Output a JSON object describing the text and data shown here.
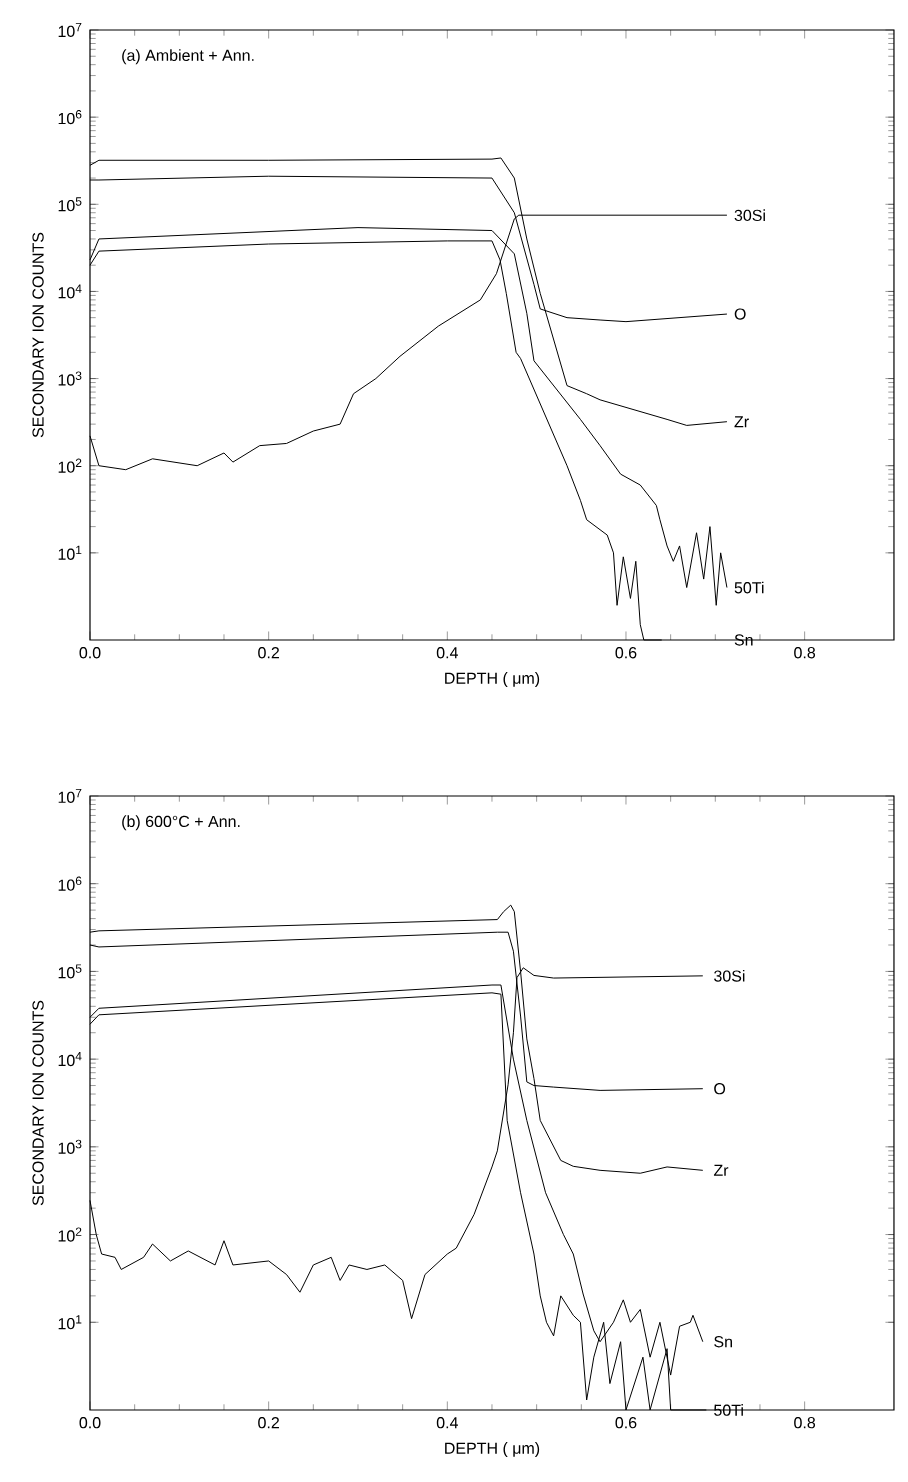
{
  "chart_data": [
    {
      "type": "line",
      "title": "(a) Ambient + Ann.",
      "xlabel": "DEPTH ( μm)",
      "ylabel": "SECONDARY ION COUNTS",
      "log": "y",
      "xlim": [
        0,
        0.9
      ],
      "ylim": [
        1,
        10000000
      ],
      "xticks": [
        {
          "value": 0,
          "label": "0.0"
        },
        {
          "value": 0.2,
          "label": "0.2"
        },
        {
          "value": 0.4,
          "label": "0.4"
        },
        {
          "value": 0.6,
          "label": "0.6"
        },
        {
          "value": 0.8,
          "label": "0.8"
        }
      ],
      "yticks": [
        {
          "value": 10,
          "label": "10$^{1}$"
        },
        {
          "value": 100,
          "label": "10$^{2}$"
        },
        {
          "value": 1000,
          "label": "10$^{3}$"
        },
        {
          "value": 10000,
          "label": "10$^{4}$"
        },
        {
          "value": 100000,
          "label": "10$^{5}$"
        },
        {
          "value": 1000000,
          "label": "10$^{6}$"
        },
        {
          "value": 10000000,
          "label": "10$^{7}$"
        }
      ],
      "series": [
        {
          "name": "30Si",
          "color": "#000000",
          "x": [
            0,
            0.01,
            0.04,
            0.07,
            0.12,
            0.15,
            0.16,
            0.19,
            0.22,
            0.25,
            0.28,
            0.295,
            0.32,
            0.347,
            0.39,
            0.437,
            0.455,
            0.475,
            0.48,
            0.6,
            0.713
          ],
          "values": [
            220,
            100,
            90,
            120,
            100,
            140,
            110,
            170,
            180,
            250,
            300,
            670,
            1000,
            1800,
            4000,
            8000,
            16000,
            68000,
            75000,
            75000,
            75000
          ]
        },
        {
          "name": "O",
          "color": "#000000",
          "x": [
            0,
            0.01,
            0.2,
            0.45,
            0.475,
            0.497,
            0.504,
            0.534,
            0.571,
            0.6,
            0.713
          ],
          "values": [
            190000,
            190000,
            210000,
            200000,
            80000,
            12000,
            6300,
            5000,
            4700,
            4500,
            5500
          ]
        },
        {
          "name": "Zr",
          "color": "#000000",
          "x": [
            0,
            0.01,
            0.2,
            0.45,
            0.46,
            0.475,
            0.489,
            0.504,
            0.534,
            0.556,
            0.571,
            0.646,
            0.668,
            0.713
          ],
          "values": [
            280000,
            320000,
            320000,
            330000,
            340000,
            200000,
            40000,
            9500,
            830,
            670,
            570,
            340,
            290,
            320
          ]
        },
        {
          "name": "50Ti",
          "color": "#000000",
          "x": [
            0,
            0.01,
            0.3,
            0.45,
            0.475,
            0.489,
            0.497,
            0.549,
            0.571,
            0.594,
            0.616,
            0.634,
            0.638,
            0.646,
            0.653,
            0.66,
            0.668,
            0.679,
            0.687,
            0.694,
            0.701,
            0.706,
            0.713
          ],
          "values": [
            23000,
            40000,
            54000,
            50000,
            27000,
            5600,
            1600,
            340,
            170,
            80,
            60,
            35,
            24,
            12,
            8,
            12,
            4,
            17,
            5,
            20,
            2.5,
            10,
            4
          ]
        },
        {
          "name": "Sn",
          "color": "#000000",
          "x": [
            0,
            0.01,
            0.2,
            0.4,
            0.45,
            0.459,
            0.466,
            0.477,
            0.482,
            0.534,
            0.549,
            0.556,
            0.579,
            0.586,
            0.59,
            0.597,
            0.605,
            0.611,
            0.616,
            0.62,
            0.64
          ],
          "values": [
            20000,
            29000,
            35000,
            38000,
            38000,
            23000,
            9500,
            2000,
            1700,
            100,
            40,
            24,
            16,
            10,
            2.5,
            9,
            3,
            8,
            1.5,
            1,
            1
          ]
        }
      ]
    },
    {
      "type": "line",
      "title": "(b) 600°C + Ann.",
      "xlabel": "DEPTH ( μm)",
      "ylabel": "SECONDARY ION COUNTS",
      "log": "y",
      "xlim": [
        0,
        0.9
      ],
      "ylim": [
        1,
        10000000
      ],
      "xticks": [
        {
          "value": 0,
          "label": "0.0"
        },
        {
          "value": 0.2,
          "label": "0.2"
        },
        {
          "value": 0.4,
          "label": "0.4"
        },
        {
          "value": 0.6,
          "label": "0.6"
        },
        {
          "value": 0.8,
          "label": "0.8"
        }
      ],
      "yticks": [
        {
          "value": 10,
          "label": "10$^{1}$"
        },
        {
          "value": 100,
          "label": "10$^{2}$"
        },
        {
          "value": 1000,
          "label": "10$^{3}$"
        },
        {
          "value": 10000,
          "label": "10$^{4}$"
        },
        {
          "value": 100000,
          "label": "10$^{5}$"
        },
        {
          "value": 1000000,
          "label": "10$^{6}$"
        },
        {
          "value": 10000000,
          "label": "10$^{7}$"
        }
      ],
      "series": [
        {
          "name": "30Si",
          "color": "#000000",
          "x": [
            0,
            0.007,
            0.013,
            0.028,
            0.035,
            0.06,
            0.07,
            0.09,
            0.11,
            0.14,
            0.15,
            0.16,
            0.2,
            0.22,
            0.235,
            0.25,
            0.27,
            0.28,
            0.29,
            0.31,
            0.33,
            0.35,
            0.36,
            0.375,
            0.4,
            0.41,
            0.43,
            0.45,
            0.456,
            0.468,
            0.474,
            0.478,
            0.485,
            0.497,
            0.519,
            0.686
          ],
          "values": [
            245,
            100,
            60,
            55,
            40,
            55,
            78,
            50,
            65,
            45,
            85,
            45,
            50,
            35,
            22,
            45,
            55,
            30,
            45,
            40,
            45,
            30,
            11,
            35,
            60,
            70,
            170,
            590,
            900,
            5100,
            20000,
            85000,
            110000,
            90000,
            84000,
            89000
          ]
        },
        {
          "name": "O",
          "color": "#000000",
          "x": [
            0,
            0.01,
            0.456,
            0.468,
            0.474,
            0.482,
            0.489,
            0.497,
            0.519,
            0.571,
            0.686
          ],
          "values": [
            200000,
            190000,
            280000,
            280000,
            170000,
            31000,
            5500,
            5000,
            4800,
            4400,
            4600
          ]
        },
        {
          "name": "Zr",
          "color": "#000000",
          "x": [
            0,
            0.01,
            0.456,
            0.463,
            0.471,
            0.475,
            0.482,
            0.489,
            0.497,
            0.504,
            0.527,
            0.541,
            0.571,
            0.616,
            0.646,
            0.686
          ],
          "values": [
            280000,
            290000,
            390000,
            480000,
            570000,
            480000,
            100000,
            17000,
            6000,
            2000,
            700,
            600,
            540,
            500,
            590,
            540
          ]
        },
        {
          "name": "Sn",
          "color": "#000000",
          "x": [
            0,
            0.01,
            0.45,
            0.46,
            0.474,
            0.489,
            0.51,
            0.53,
            0.541,
            0.552,
            0.564,
            0.571,
            0.586,
            0.597,
            0.605,
            0.616,
            0.627,
            0.638,
            0.65,
            0.66,
            0.672,
            0.675,
            0.686
          ],
          "values": [
            30000,
            38000,
            70000,
            70000,
            10000,
            2000,
            300,
            100,
            60,
            21,
            8,
            6,
            10,
            18,
            10,
            14,
            4,
            10,
            2.5,
            9,
            10,
            12,
            6
          ]
        },
        {
          "name": "50Ti",
          "color": "#000000",
          "x": [
            0,
            0.01,
            0.45,
            0.46,
            0.467,
            0.482,
            0.497,
            0.504,
            0.511,
            0.519,
            0.527,
            0.541,
            0.549,
            0.556,
            0.564,
            0.575,
            0.582,
            0.594,
            0.6,
            0.619,
            0.627,
            0.646,
            0.65,
            0.69
          ],
          "values": [
            25000,
            32000,
            57000,
            55000,
            2000,
            300,
            60,
            20,
            10,
            7,
            20,
            12,
            10,
            1.3,
            4,
            10,
            2,
            6,
            1,
            4,
            1,
            5,
            1,
            1
          ]
        }
      ]
    }
  ]
}
